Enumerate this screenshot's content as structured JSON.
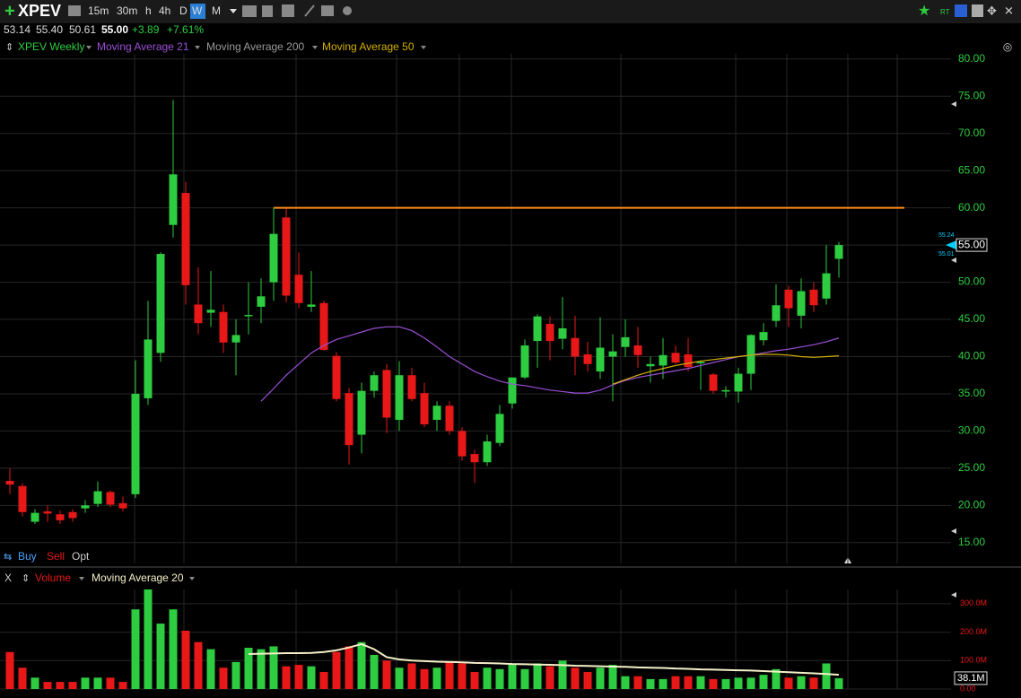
{
  "toolbar": {
    "symbol": "XPEV",
    "timeframes": [
      "15m",
      "30m",
      "h",
      "4h",
      "D",
      "W",
      "M"
    ],
    "active_timeframe": "W"
  },
  "quote": {
    "open": "53.14",
    "high": "55.40",
    "low": "50.61",
    "close": "55.00",
    "change": "+3.89",
    "change_pct": "+7.61%"
  },
  "order_bar": {
    "buy": "Buy",
    "sell": "Sell",
    "opt": "Opt"
  },
  "chart_data": [
    {
      "type": "candlestick",
      "up_color": "#2ecc40",
      "down_color": "#e81818",
      "ylim": [
        12.2,
        80.7
      ],
      "yticks": [
        {
          "value": 15,
          "label": "15.00"
        },
        {
          "value": 20,
          "label": "20.00"
        },
        {
          "value": 25,
          "label": "25.00"
        },
        {
          "value": 30,
          "label": "30.00"
        },
        {
          "value": 35,
          "label": "35.00"
        },
        {
          "value": 40,
          "label": "40.00"
        },
        {
          "value": 45,
          "label": "45.00"
        },
        {
          "value": 50,
          "label": "50.00"
        },
        {
          "value": 55,
          "label": "55.00"
        },
        {
          "value": 60,
          "label": "60.00"
        },
        {
          "value": 65,
          "label": "65.00"
        },
        {
          "value": 70,
          "label": "70.00"
        },
        {
          "value": 75,
          "label": "75.00"
        },
        {
          "value": 80,
          "label": "80.00"
        }
      ],
      "grid": true,
      "last_price_label": "55.00",
      "ask_label": "55.24",
      "bid_label": "55.01",
      "horizontal_line": {
        "value": 60,
        "color": "#ff8c1a"
      },
      "candles": {
        "name": "XPEV Weekly",
        "color": "#2ecc40",
        "open": [
          23.3,
          22.6,
          17.8,
          19.2,
          18.8,
          19.1,
          19.6,
          20.2,
          21.8,
          20.3,
          21.5,
          34.4,
          40.5,
          57.7,
          62,
          47,
          45.9,
          46,
          41.9,
          45.5,
          46.7,
          50.0,
          58.7,
          51,
          46.7,
          47.2,
          40.1,
          35.1,
          29.5,
          35.4,
          38.2,
          31.5,
          37.5,
          35.1,
          31.5,
          33.4,
          30,
          26.9,
          25.8,
          28.4,
          33.7,
          37.2,
          42.1,
          44.4,
          42.4,
          42.5,
          40.3,
          38,
          40,
          41.3,
          41.5,
          38.7,
          38.8,
          40.5,
          40.3,
          39.1,
          37.6,
          35.3,
          35.3,
          37.7,
          42.2,
          44.8,
          49,
          45.5,
          49,
          47.8,
          53.14
        ],
        "high": [
          25,
          23,
          19.5,
          20,
          19.3,
          19.5,
          20.7,
          23.2,
          22,
          21.2,
          39.5,
          47.5,
          54,
          74.5,
          63.5,
          52,
          51.5,
          47,
          45,
          50,
          50.5,
          60,
          59.9,
          54,
          51.5,
          47.5,
          40.6,
          35.8,
          36.5,
          38,
          39,
          39.4,
          38.5,
          36.5,
          34,
          34,
          30.5,
          27.5,
          29.5,
          33.5,
          37,
          42.3,
          45.7,
          45.4,
          48,
          45.5,
          42,
          45.3,
          43,
          45,
          44,
          40,
          42.5,
          41.5,
          42.5,
          39.5,
          37.8,
          36,
          38.5,
          43,
          44.5,
          49.7,
          49.5,
          50.5,
          50,
          55,
          55.4
        ],
        "low": [
          21.5,
          18.5,
          17.5,
          17.8,
          17.5,
          17.8,
          19,
          19.8,
          19.8,
          19.2,
          21,
          33.5,
          39.3,
          56,
          47,
          43,
          44,
          40.5,
          37.5,
          43,
          44.5,
          47.5,
          47.3,
          46.5,
          46,
          40.8,
          34,
          25.5,
          27,
          34.5,
          29.7,
          30,
          34,
          30.5,
          30,
          29.5,
          26,
          23,
          25.3,
          28,
          33,
          37,
          38.5,
          39.5,
          41,
          37.5,
          38,
          37,
          34,
          40,
          38.5,
          36.5,
          37,
          39,
          38,
          35.5,
          35,
          34.5,
          33.8,
          35.5,
          41.5,
          44,
          44,
          43.8,
          46,
          47,
          50.61
        ],
        "close": [
          22.8,
          19.1,
          19,
          18.9,
          18.0,
          18.3,
          20.0,
          21.9,
          20.1,
          19.6,
          35.0,
          42.3,
          53.8,
          64.5,
          49.6,
          44.5,
          46.3,
          41.9,
          42.9,
          45.6,
          48.1,
          56.5,
          48.2,
          47.2,
          47.0,
          40.9,
          34.3,
          28.1,
          35.4,
          37.5,
          31.8,
          37.5,
          34.3,
          30.9,
          33.4,
          30.0,
          26.6,
          25.8,
          28.6,
          32.3,
          37.2,
          41.5,
          45.4,
          42.1,
          43.8,
          40,
          39,
          41.2,
          40.7,
          42.6,
          40.2,
          39,
          40.2,
          39.2,
          38.6,
          39.3,
          35.4,
          35.5,
          37.7,
          42.9,
          43.3,
          46.9,
          46.5,
          48.8,
          46.9,
          51.2,
          55.0
        ]
      },
      "series": [
        {
          "name": "Moving Average 21",
          "color": "#9b4fd6",
          "values": [
            null,
            null,
            null,
            null,
            null,
            null,
            null,
            null,
            null,
            null,
            null,
            null,
            null,
            null,
            null,
            null,
            null,
            null,
            null,
            null,
            34.0,
            35.7,
            37.5,
            39,
            40.5,
            41.5,
            42.3,
            42.8,
            43.3,
            43.8,
            44.0,
            44.0,
            43.5,
            42.5,
            41.3,
            40.0,
            39.0,
            38.0,
            37.3,
            36.7,
            36.3,
            36.1,
            35.8,
            35.5,
            35.3,
            35.1,
            35.1,
            35.5,
            36.2,
            36.8,
            37.2,
            37.5,
            37.8,
            38.1,
            38.4,
            38.8,
            39.2,
            39.6,
            40.0,
            40.2,
            40.5,
            40.8,
            41.0,
            41.3,
            41.6,
            42.0,
            42.5
          ]
        },
        {
          "name": "Moving Average 200",
          "color": "#9a9a9a",
          "values": [
            null,
            null,
            null,
            null,
            null,
            null,
            null,
            null,
            null,
            null,
            null,
            null,
            null,
            null,
            null,
            null,
            null,
            null,
            null,
            null,
            null,
            null,
            null,
            null,
            null,
            null,
            null,
            null,
            null,
            null,
            null,
            null,
            null,
            null,
            null,
            null,
            null,
            null,
            null,
            null,
            null,
            null,
            null,
            null,
            null,
            null,
            null,
            null,
            null,
            null,
            null,
            null,
            null,
            null,
            null,
            null,
            null,
            null,
            null,
            null,
            null,
            null,
            null,
            null,
            null,
            null,
            null
          ]
        },
        {
          "name": "Moving Average 50",
          "color": "#d4b000",
          "values": [
            null,
            null,
            null,
            null,
            null,
            null,
            null,
            null,
            null,
            null,
            null,
            null,
            null,
            null,
            null,
            null,
            null,
            null,
            null,
            null,
            null,
            null,
            null,
            null,
            null,
            null,
            null,
            null,
            null,
            null,
            null,
            null,
            null,
            null,
            null,
            null,
            null,
            null,
            null,
            null,
            null,
            null,
            null,
            null,
            null,
            null,
            null,
            null,
            36.3,
            36.9,
            37.5,
            38.0,
            38.4,
            38.8,
            39.1,
            39.4,
            39.6,
            39.8,
            40.0,
            40.2,
            40.3,
            40.3,
            40.2,
            40.0,
            39.9,
            40.0,
            40.1
          ]
        }
      ]
    },
    {
      "type": "bar",
      "close_button": "X",
      "up_color": "#2ecc40",
      "down_color": "#e81818",
      "ylim": [
        0,
        350
      ],
      "yticks": [
        {
          "value": 0,
          "label": "0.00"
        },
        {
          "value": 100,
          "label": "100.0M"
        },
        {
          "value": 200,
          "label": "200.0M"
        },
        {
          "value": 300,
          "label": "300.0M"
        }
      ],
      "current_label": "38.1M",
      "series": [
        {
          "name": "Volume",
          "color": "#e81818",
          "values": [
            130,
            75,
            40,
            25,
            25,
            25,
            40,
            40,
            40,
            25,
            280,
            350,
            230,
            280,
            205,
            165,
            140,
            75,
            95,
            145,
            140,
            150,
            80,
            85,
            80,
            60,
            130,
            150,
            165,
            120,
            100,
            75,
            90,
            70,
            75,
            95,
            90,
            60,
            75,
            70,
            85,
            70,
            90,
            80,
            100,
            75,
            60,
            75,
            85,
            45,
            45,
            35,
            35,
            45,
            45,
            45,
            35,
            35,
            40,
            40,
            50,
            70,
            40,
            45,
            40,
            90,
            38.1
          ]
        },
        {
          "name": "Moving Average 20",
          "color": "#f5f0c8",
          "values": [
            null,
            null,
            null,
            null,
            null,
            null,
            null,
            null,
            null,
            null,
            null,
            null,
            null,
            null,
            null,
            null,
            null,
            null,
            null,
            123,
            124,
            125,
            126,
            126,
            127,
            130,
            136,
            146,
            158,
            140,
            112,
            104,
            100,
            98,
            96,
            95,
            94,
            92,
            91,
            90,
            88,
            87,
            86,
            85,
            84,
            82,
            81,
            80,
            79,
            78,
            76,
            75,
            74,
            72,
            71,
            69,
            68,
            67,
            66,
            65,
            63,
            61,
            59,
            57,
            55,
            53,
            50
          ]
        }
      ]
    }
  ]
}
